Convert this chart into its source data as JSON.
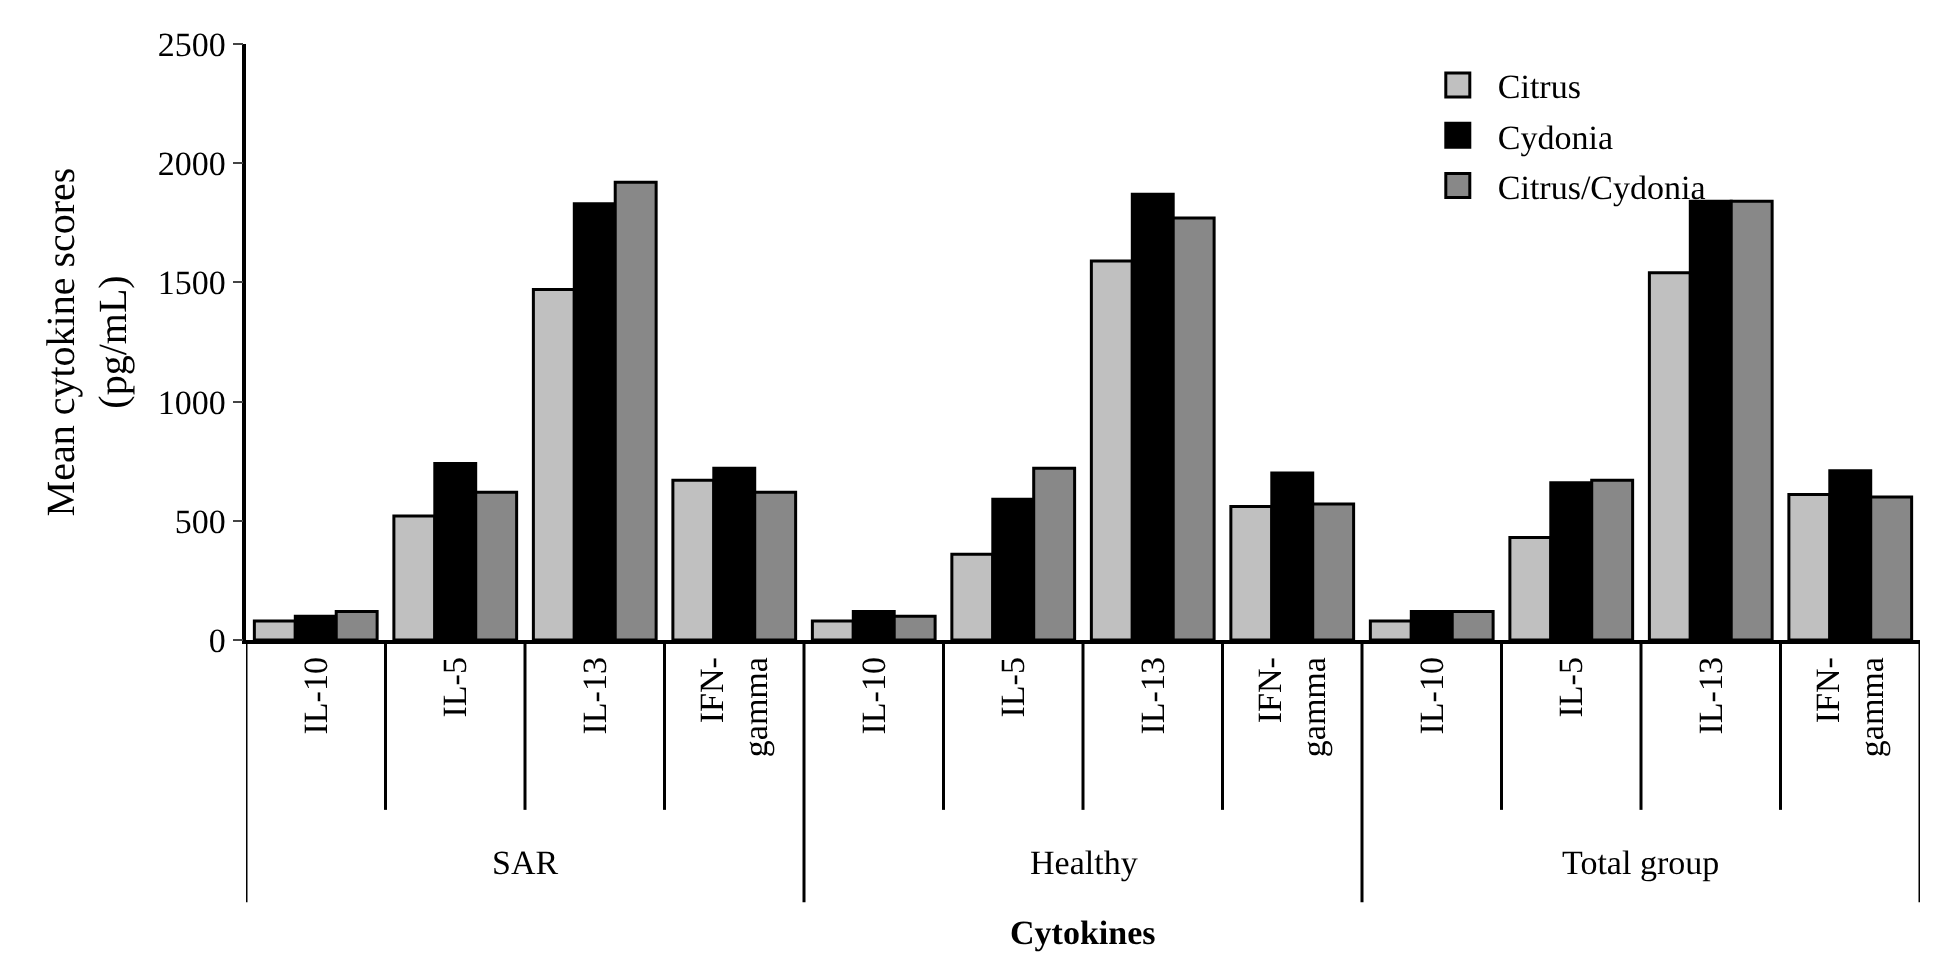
{
  "chart_data": {
    "type": "bar",
    "xlabel": "Cytokines",
    "ylabel": "Mean cytokine scores\n(pg/mL)",
    "categories": [
      "IL-10",
      "IL-5",
      "IL-13",
      "IFN-\ngamma",
      "IL-10",
      "IL-5",
      "IL-13",
      "IFN-\ngamma",
      "IL-10",
      "IL-5",
      "IL-13",
      "IFN-\ngamma"
    ],
    "annotations": [
      "SAR",
      "Healthy",
      "Total group"
    ],
    "series": [
      {
        "name": "Citrus",
        "color": "#c0c0c0",
        "values": [
          80,
          520,
          1470,
          670,
          80,
          360,
          1590,
          560,
          80,
          430,
          1540,
          610
        ]
      },
      {
        "name": "Cydonia",
        "color": "#000000",
        "values": [
          100,
          740,
          1830,
          720,
          120,
          590,
          1870,
          700,
          120,
          660,
          1840,
          710
        ]
      },
      {
        "name": "Citrus/Cydonia",
        "color": "#888888",
        "values": [
          120,
          620,
          1920,
          620,
          100,
          720,
          1770,
          570,
          120,
          670,
          1840,
          600
        ]
      }
    ],
    "ylim": [
      0,
      2500
    ],
    "yticks": [
      0,
      500,
      1000,
      1500,
      2000,
      2500
    ],
    "legend": "top right"
  }
}
